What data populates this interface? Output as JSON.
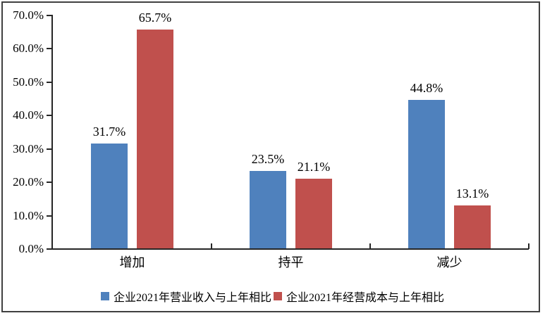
{
  "chart_data": {
    "type": "bar",
    "title": "",
    "categories": [
      "增加",
      "持平",
      "减少"
    ],
    "series": [
      {
        "name": "企业2021年营业收入与上年相比",
        "color": "#4F81BD",
        "values": [
          31.7,
          23.5,
          44.8
        ],
        "labels": [
          "31.7%",
          "23.5%",
          "44.8%"
        ]
      },
      {
        "name": "企业2021年经营成本与上年相比",
        "color": "#C0504D",
        "values": [
          65.7,
          21.1,
          13.1
        ],
        "labels": [
          "65.7%",
          "21.1%",
          "13.1%"
        ]
      }
    ],
    "xlabel": "",
    "ylabel": "",
    "ylim": [
      0,
      70
    ],
    "ytick_values": [
      0,
      10,
      20,
      30,
      40,
      50,
      60,
      70
    ],
    "ytick_labels": [
      "0.0%",
      "10.0%",
      "20.0%",
      "30.0%",
      "40.0%",
      "50.0%",
      "60.0%",
      "70.0%"
    ],
    "grid": false,
    "legend_position": "bottom"
  }
}
